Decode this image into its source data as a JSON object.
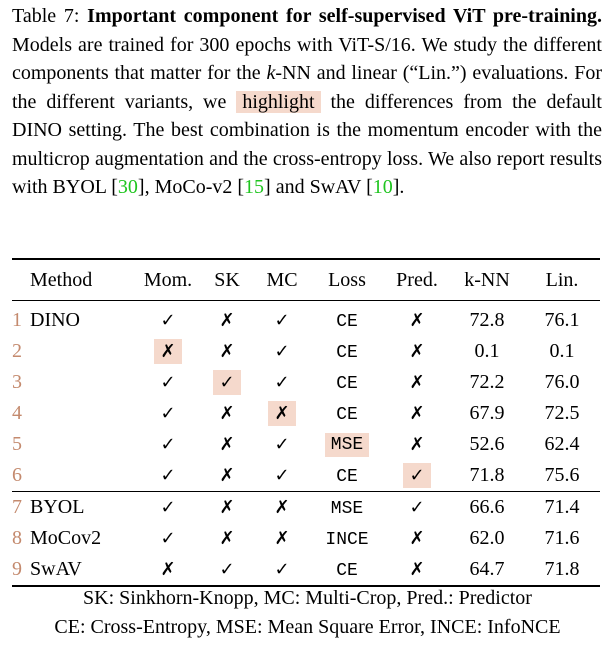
{
  "caption": {
    "segments": [
      "Table 7: ",
      "Important component for self-supervised ViT pre-training.",
      " Models are trained for 300 epochs with ViT-S/16. We study the different components that matter for the ",
      "k",
      "-NN and linear (“Lin.”) evaluations. For the different variants, we ",
      "highlight",
      " the differences from the default DINO setting. The best combination is the momentum encoder with the multicrop augmentation and the cross-entropy loss. We also report results with BYOL [",
      "30",
      "], MoCo-v2 [",
      "15",
      "] and SwAV [",
      "10",
      "]."
    ]
  },
  "table": {
    "headers": [
      "Method",
      "Mom.",
      "SK",
      "MC",
      "Loss",
      "Pred.",
      "k-NN",
      "Lin."
    ],
    "groups": [
      [
        {
          "index": 1,
          "cells": [
            "DINO",
            "✓",
            "✗",
            "✓",
            "CE",
            "✗",
            "72.8",
            "76.1"
          ],
          "highlight": []
        },
        {
          "index": 2,
          "cells": [
            null,
            "✗",
            "✗",
            "✓",
            "CE",
            "✗",
            "0.1",
            "0.1"
          ],
          "highlight": [
            1
          ]
        },
        {
          "index": 3,
          "cells": [
            null,
            "✓",
            "✓",
            "✓",
            "CE",
            "✗",
            "72.2",
            "76.0"
          ],
          "highlight": [
            2
          ]
        },
        {
          "index": 4,
          "cells": [
            null,
            "✓",
            "✗",
            "✗",
            "CE",
            "✗",
            "67.9",
            "72.5"
          ],
          "highlight": [
            3
          ]
        },
        {
          "index": 5,
          "cells": [
            null,
            "✓",
            "✗",
            "✓",
            "MSE",
            "✗",
            "52.6",
            "62.4"
          ],
          "highlight": [
            4
          ]
        },
        {
          "index": 6,
          "cells": [
            null,
            "✓",
            "✗",
            "✓",
            "CE",
            "✓",
            "71.8",
            "75.6"
          ],
          "highlight": [
            5
          ]
        }
      ],
      [
        {
          "index": 7,
          "cells": [
            "BYOL",
            "✓",
            "✗",
            "✗",
            "MSE",
            "✓",
            "66.6",
            "71.4"
          ],
          "highlight": []
        },
        {
          "index": 8,
          "cells": [
            "MoCov2",
            "✓",
            "✗",
            "✗",
            "INCE",
            "✗",
            "62.0",
            "71.6"
          ],
          "highlight": []
        },
        {
          "index": 9,
          "cells": [
            "SwAV",
            "✗",
            "✓",
            "✓",
            "CE",
            "✗",
            "64.7",
            "71.8"
          ],
          "highlight": []
        }
      ]
    ],
    "notes": [
      "SK: Sinkhorn-Knopp, MC: Multi-Crop, Pred.: Predictor",
      "CE: Cross-Entropy, MSE: Mean Square Error, INCE: InfoNCE"
    ]
  }
}
